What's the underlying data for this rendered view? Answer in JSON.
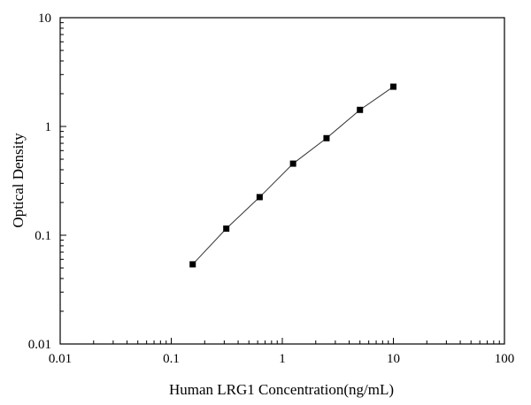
{
  "chart_data": {
    "type": "scatter",
    "xlabel": "Human LRG1 Concentration(ng/mL)",
    "ylabel": "Optical Density",
    "x_scale": "log",
    "y_scale": "log",
    "xlim": [
      0.01,
      100
    ],
    "ylim": [
      0.01,
      10
    ],
    "x_ticks": [
      "0.01",
      "0.1",
      "1",
      "10",
      "100"
    ],
    "y_ticks": [
      "0.01",
      "0.1",
      "1",
      "10"
    ],
    "grid": false,
    "marker": "filled-square",
    "fit_line": true,
    "series": [
      {
        "x": [
          0.156,
          0.313,
          0.625,
          1.25,
          2.5,
          5,
          10
        ],
        "y": [
          0.054,
          0.115,
          0.224,
          0.455,
          0.78,
          1.42,
          2.32
        ]
      }
    ]
  }
}
